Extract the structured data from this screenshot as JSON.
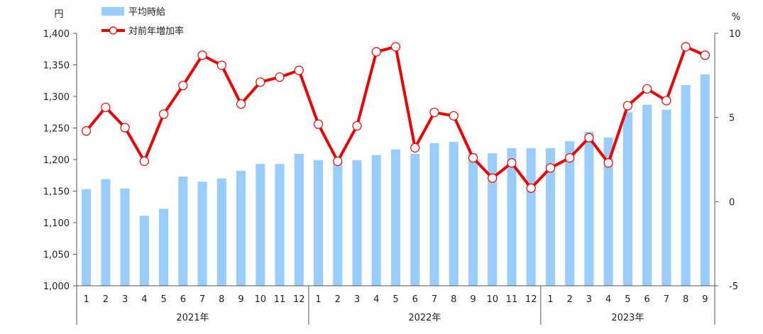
{
  "chart_data": {
    "type": "bar",
    "left_axis": {
      "unit": "円",
      "min": 1000,
      "max": 1400,
      "step": 50,
      "tick_labels": [
        "1,000",
        "1,050",
        "1,100",
        "1,150",
        "1,200",
        "1,250",
        "1,300",
        "1,350",
        "1,400"
      ]
    },
    "right_axis": {
      "unit": "%",
      "min": -5,
      "max": 10,
      "step": 5,
      "tick_labels": [
        "-5",
        "0",
        "5",
        "10"
      ]
    },
    "categories": [
      "1",
      "2",
      "3",
      "4",
      "5",
      "6",
      "7",
      "8",
      "9",
      "10",
      "11",
      "12",
      "1",
      "2",
      "3",
      "4",
      "5",
      "6",
      "7",
      "8",
      "9",
      "10",
      "11",
      "12",
      "1",
      "2",
      "3",
      "4",
      "5",
      "6",
      "7",
      "8",
      "9"
    ],
    "year_groups": [
      {
        "label": "2021年",
        "count": 12
      },
      {
        "label": "2022年",
        "count": 12
      },
      {
        "label": "2023年",
        "count": 9
      }
    ],
    "series": [
      {
        "name": "平均時給",
        "type": "bar",
        "axis": "left",
        "color": "#99ccff",
        "values": [
          1153,
          1169,
          1154,
          1111,
          1122,
          1173,
          1165,
          1170,
          1182,
          1193,
          1193,
          1209,
          1199,
          1197,
          1199,
          1207,
          1216,
          1209,
          1226,
          1228,
          1210,
          1210,
          1218,
          1218,
          1218,
          1229,
          1244,
          1235,
          1275,
          1287,
          1279,
          1318,
          1335
        ]
      },
      {
        "name": "対前年増加率",
        "type": "line",
        "axis": "right",
        "color": "#ee0000",
        "values": [
          4.2,
          5.6,
          4.4,
          2.4,
          5.2,
          6.9,
          8.7,
          8.1,
          5.8,
          7.1,
          7.4,
          7.8,
          4.6,
          2.4,
          4.5,
          8.9,
          9.2,
          3.2,
          5.3,
          5.1,
          2.6,
          1.4,
          2.3,
          0.8,
          2.0,
          2.6,
          3.8,
          2.3,
          5.7,
          6.7,
          6.0,
          9.2,
          8.7
        ]
      }
    ]
  }
}
